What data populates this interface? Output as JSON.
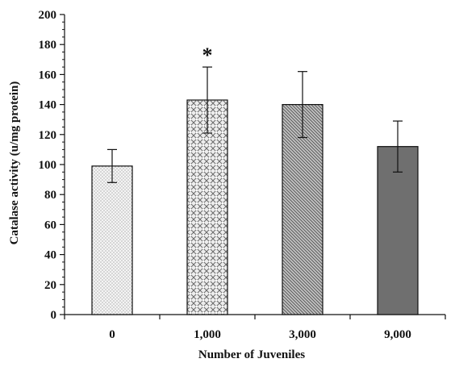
{
  "chart_data": {
    "type": "bar",
    "title": "",
    "xlabel": "Number of Juveniles",
    "ylabel": "Catalase activity (u/mg protein)",
    "categories": [
      "0",
      "1,000",
      "3,000",
      "9,000"
    ],
    "values": [
      99,
      143,
      140,
      112
    ],
    "error": [
      11,
      22,
      22,
      17
    ],
    "annotations": [
      {
        "category": "1,000",
        "text": "*"
      }
    ],
    "ylim": [
      0,
      200
    ],
    "yticks": [
      "0",
      "20",
      "40",
      "60",
      "80",
      "100",
      "120",
      "140",
      "160",
      "180",
      "200"
    ],
    "grid": false,
    "legend": "none",
    "bar_fills": [
      "#f2f2f2",
      "#c8c8c8",
      "#a9a9a9",
      "#6e6e6e"
    ],
    "patterns": [
      "fine-dots",
      "diamond-crosshatch",
      "diagonal-hatch",
      "solid-dark"
    ]
  }
}
